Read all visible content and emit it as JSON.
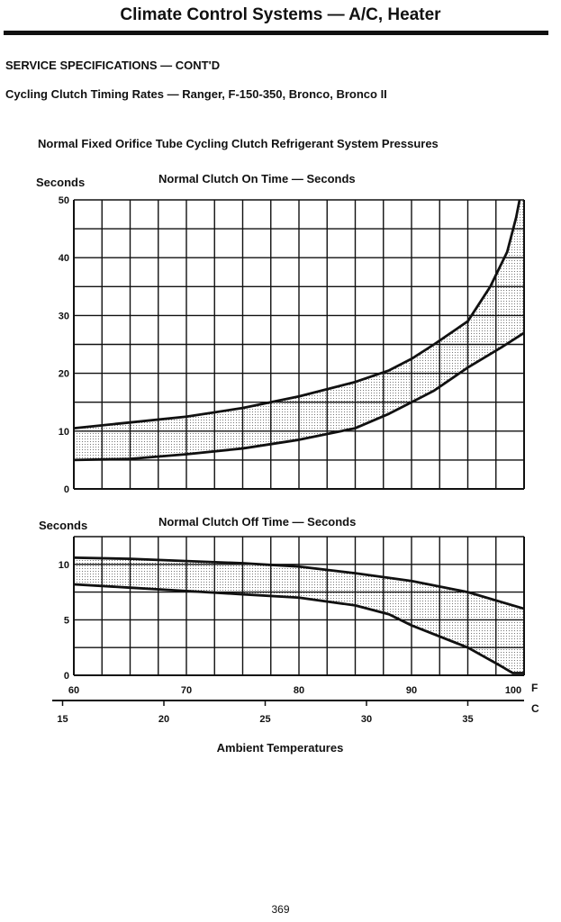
{
  "header": {
    "title": "Climate Control Systems — A/C, Heater"
  },
  "section": "SERVICE SPECIFICATIONS — CONT'D",
  "subtitle": "Cycling Clutch Timing Rates — Ranger, F-150-350, Bronco, Bronco II",
  "figure_title": "Normal Fixed Orifice Tube Cycling Clutch Refrigerant System Pressures",
  "page_number": "369",
  "x_axis": {
    "label": "Ambient Temperatures",
    "f_unit": "F",
    "c_unit": "C",
    "f_ticks": [
      "60",
      "70",
      "80",
      "90",
      "100"
    ],
    "c_ticks": [
      "15",
      "20",
      "25",
      "30",
      "35"
    ]
  },
  "chart_data": [
    {
      "type": "area",
      "title": "Normal Clutch On Time — Seconds",
      "ylabel": "Seconds",
      "xlabel": "Ambient Temperatures (F)",
      "xlim": [
        60,
        100
      ],
      "ylim": [
        0,
        50
      ],
      "yticks": [
        "0",
        "10",
        "20",
        "30",
        "40",
        "50"
      ],
      "grid": true,
      "series": [
        {
          "name": "upper",
          "x": [
            60,
            65,
            70,
            75,
            80,
            85,
            88,
            90,
            92,
            95,
            97,
            98.5,
            99.3,
            99.6
          ],
          "y": [
            10.5,
            11.5,
            12.5,
            14,
            16,
            18.5,
            20.5,
            22.5,
            25,
            29,
            35,
            41,
            47,
            50
          ]
        },
        {
          "name": "lower",
          "x": [
            60,
            65,
            70,
            75,
            80,
            85,
            88,
            90,
            92,
            95,
            98,
            100
          ],
          "y": [
            5,
            5.2,
            6,
            7,
            8.5,
            10.5,
            13,
            15,
            17,
            21,
            24.5,
            27
          ]
        }
      ]
    },
    {
      "type": "area",
      "title": "Normal Clutch Off Time — Seconds",
      "ylabel": "Seconds",
      "xlabel": "Ambient Temperatures (F)",
      "xlim": [
        60,
        100
      ],
      "ylim": [
        0,
        12.5
      ],
      "yticks": [
        "0",
        "5",
        "10"
      ],
      "grid": true,
      "series": [
        {
          "name": "upper",
          "x": [
            60,
            65,
            70,
            75,
            80,
            85,
            90,
            95,
            100
          ],
          "y": [
            10.6,
            10.5,
            10.3,
            10.1,
            9.8,
            9.2,
            8.5,
            7.5,
            6
          ]
        },
        {
          "name": "lower",
          "x": [
            60,
            65,
            70,
            75,
            80,
            85,
            88,
            90,
            95,
            98,
            99,
            100
          ],
          "y": [
            8.2,
            7.9,
            7.6,
            7.3,
            7,
            6.3,
            5.5,
            4.5,
            2.5,
            0.8,
            0.2,
            0.2
          ]
        }
      ]
    }
  ]
}
